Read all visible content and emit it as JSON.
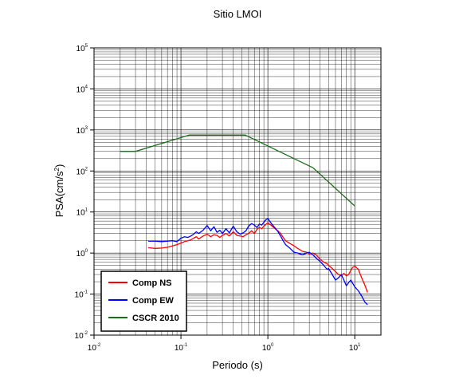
{
  "chart_data": {
    "type": "line",
    "title": "Sitio LMOI",
    "xlabel": "Periodo (s)",
    "ylabel_main": "PSA(cm/s",
    "ylabel_sup": "2",
    "ylabel_end": ")",
    "x_scale": "log",
    "y_scale": "log",
    "xlim": [
      0.01,
      20
    ],
    "ylim": [
      0.01,
      100000
    ],
    "grid": true,
    "legend_position": "bottom-left",
    "x_ticks": [
      {
        "base": "10",
        "exp": "-2",
        "value": 0.01
      },
      {
        "base": "10",
        "exp": "-1",
        "value": 0.1
      },
      {
        "base": "10",
        "exp": "0",
        "value": 1
      },
      {
        "base": "10",
        "exp": "1",
        "value": 10
      }
    ],
    "y_ticks": [
      {
        "base": "10",
        "exp": "-2",
        "value": 0.01
      },
      {
        "base": "10",
        "exp": "-1",
        "value": 0.1
      },
      {
        "base": "10",
        "exp": "0",
        "value": 1
      },
      {
        "base": "10",
        "exp": "1",
        "value": 10
      },
      {
        "base": "10",
        "exp": "2",
        "value": 100
      },
      {
        "base": "10",
        "exp": "3",
        "value": 1000
      },
      {
        "base": "10",
        "exp": "4",
        "value": 10000
      },
      {
        "base": "10",
        "exp": "5",
        "value": 100000
      }
    ],
    "series": [
      {
        "name": "Comp NS",
        "color": "#ff0000",
        "x": [
          0.042,
          0.05,
          0.06,
          0.07,
          0.08,
          0.09,
          0.1,
          0.11,
          0.12,
          0.13,
          0.14,
          0.15,
          0.16,
          0.18,
          0.2,
          0.22,
          0.24,
          0.26,
          0.28,
          0.3,
          0.33,
          0.36,
          0.4,
          0.44,
          0.48,
          0.52,
          0.56,
          0.6,
          0.65,
          0.7,
          0.75,
          0.8,
          0.85,
          0.9,
          0.95,
          1.0,
          1.05,
          1.1,
          1.2,
          1.3,
          1.4,
          1.5,
          1.6,
          1.8,
          2.0,
          2.2,
          2.5,
          2.8,
          3.0,
          3.3,
          3.6,
          4.0,
          4.4,
          4.8,
          5.0,
          5.5,
          6.0,
          6.5,
          7.0,
          7.5,
          8.0,
          8.5,
          9.0,
          9.5,
          10.0,
          11.0,
          12.0,
          13.0,
          14.0
        ],
        "y": [
          1.35,
          1.3,
          1.32,
          1.38,
          1.5,
          1.6,
          1.75,
          1.9,
          2.0,
          2.1,
          2.3,
          2.5,
          2.2,
          2.6,
          2.9,
          2.5,
          2.8,
          2.7,
          2.4,
          2.7,
          3.0,
          2.6,
          3.3,
          2.7,
          2.6,
          2.5,
          2.8,
          3.0,
          3.5,
          3.0,
          3.8,
          4.2,
          3.9,
          4.5,
          5.0,
          5.5,
          5.0,
          4.7,
          4.0,
          3.5,
          3.0,
          2.4,
          2.0,
          1.7,
          1.5,
          1.3,
          1.1,
          1.05,
          0.95,
          1.0,
          0.9,
          0.7,
          0.6,
          0.55,
          0.5,
          0.42,
          0.35,
          0.3,
          0.28,
          0.32,
          0.28,
          0.3,
          0.38,
          0.45,
          0.48,
          0.4,
          0.25,
          0.17,
          0.11
        ]
      },
      {
        "name": "Comp EW",
        "color": "#0000ff",
        "x": [
          0.042,
          0.05,
          0.06,
          0.07,
          0.08,
          0.09,
          0.1,
          0.11,
          0.12,
          0.13,
          0.14,
          0.15,
          0.16,
          0.18,
          0.2,
          0.22,
          0.24,
          0.26,
          0.28,
          0.3,
          0.33,
          0.36,
          0.4,
          0.44,
          0.48,
          0.52,
          0.56,
          0.6,
          0.65,
          0.7,
          0.75,
          0.8,
          0.85,
          0.9,
          0.95,
          1.0,
          1.05,
          1.1,
          1.2,
          1.3,
          1.4,
          1.5,
          1.6,
          1.8,
          2.0,
          2.2,
          2.5,
          2.8,
          3.0,
          3.3,
          3.6,
          4.0,
          4.4,
          4.8,
          5.0,
          5.5,
          6.0,
          6.5,
          7.0,
          7.5,
          8.0,
          8.5,
          9.0,
          9.5,
          10.0,
          11.0,
          12.0,
          13.0,
          14.0
        ],
        "y": [
          1.95,
          1.95,
          1.9,
          1.95,
          2.0,
          1.9,
          2.3,
          2.5,
          2.4,
          2.6,
          2.9,
          3.3,
          3.0,
          3.6,
          4.7,
          3.5,
          4.4,
          3.2,
          3.6,
          3.0,
          3.9,
          3.1,
          4.5,
          3.3,
          2.9,
          3.1,
          3.5,
          4.5,
          5.2,
          4.8,
          4.2,
          5.1,
          4.8,
          5.6,
          6.5,
          7.0,
          6.0,
          5.2,
          4.2,
          3.4,
          2.6,
          2.0,
          1.6,
          1.3,
          1.05,
          1.0,
          0.9,
          1.0,
          1.05,
          0.9,
          0.75,
          0.62,
          0.5,
          0.4,
          0.42,
          0.3,
          0.22,
          0.25,
          0.3,
          0.22,
          0.16,
          0.19,
          0.22,
          0.18,
          0.15,
          0.12,
          0.09,
          0.065,
          0.055
        ]
      },
      {
        "name": "CSCR 2010",
        "color": "#1a6b1a",
        "x": [
          0.02,
          0.03,
          0.125,
          0.55,
          3.3,
          10.0
        ],
        "y": [
          300,
          300,
          750,
          750,
          120,
          14
        ]
      }
    ]
  }
}
